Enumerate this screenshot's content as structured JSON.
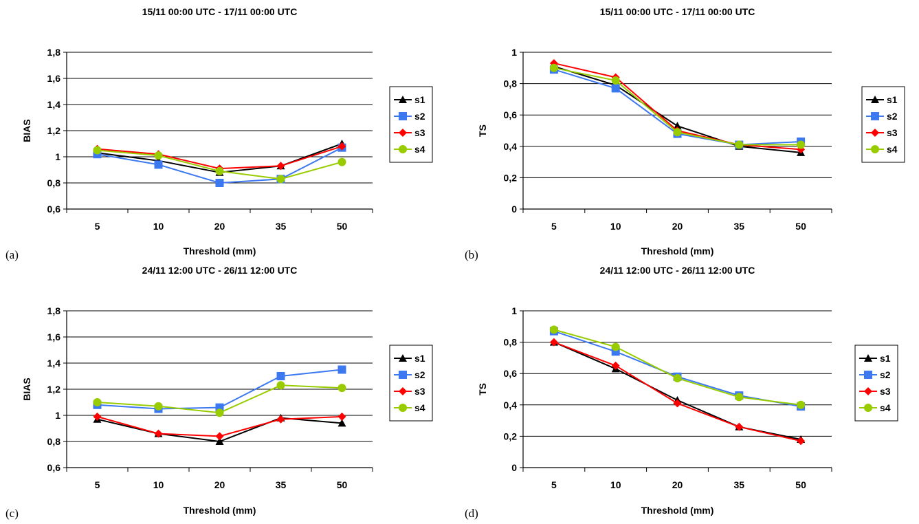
{
  "figures": [
    {
      "panel_label": "(a)"
    },
    {
      "panel_label": "(b)"
    },
    {
      "panel_label": "(c)"
    },
    {
      "panel_label": "(d)"
    }
  ],
  "series_style": [
    {
      "name": "s1",
      "color": "#000000",
      "marker": "triangle"
    },
    {
      "name": "s2",
      "color": "#3c78f0",
      "marker": "square"
    },
    {
      "name": "s3",
      "color": "#ff0000",
      "marker": "diamond"
    },
    {
      "name": "s4",
      "color": "#99cc00",
      "marker": "circle"
    }
  ],
  "chart_data": [
    {
      "type": "line",
      "title": "15/11 00:00 UTC - 17/11 00:00 UTC",
      "xlabel": "Threshold (mm)",
      "ylabel": "BIAS",
      "categories": [
        "5",
        "10",
        "20",
        "35",
        "50"
      ],
      "ylim": [
        0.6,
        1.8
      ],
      "yticks": [
        "0,6",
        "0,8",
        "1",
        "1,2",
        "1,4",
        "1,6",
        "1,8"
      ],
      "ytick_values": [
        0.6,
        0.8,
        1.0,
        1.2,
        1.4,
        1.6,
        1.8
      ],
      "grid": true,
      "legend_position": "right",
      "series": [
        {
          "name": "s1",
          "values": [
            1.03,
            0.97,
            0.88,
            0.93,
            1.1
          ]
        },
        {
          "name": "s2",
          "values": [
            1.02,
            0.94,
            0.8,
            0.83,
            1.07
          ]
        },
        {
          "name": "s3",
          "values": [
            1.06,
            1.02,
            0.91,
            0.93,
            1.08
          ]
        },
        {
          "name": "s4",
          "values": [
            1.05,
            1.01,
            0.89,
            0.83,
            0.96
          ]
        }
      ]
    },
    {
      "type": "line",
      "title": "15/11 00:00 UTC - 17/11 00:00 UTC",
      "xlabel": "Threshold (mm)",
      "ylabel": "TS",
      "categories": [
        "5",
        "10",
        "20",
        "35",
        "50"
      ],
      "ylim": [
        0,
        1
      ],
      "yticks": [
        "0",
        "0,2",
        "0,4",
        "0,6",
        "0,8",
        "1"
      ],
      "ytick_values": [
        0,
        0.2,
        0.4,
        0.6,
        0.8,
        1.0
      ],
      "grid": true,
      "legend_position": "right",
      "series": [
        {
          "name": "s1",
          "values": [
            0.91,
            0.79,
            0.53,
            0.4,
            0.36
          ]
        },
        {
          "name": "s2",
          "values": [
            0.89,
            0.77,
            0.48,
            0.41,
            0.43
          ]
        },
        {
          "name": "s3",
          "values": [
            0.93,
            0.84,
            0.5,
            0.41,
            0.38
          ]
        },
        {
          "name": "s4",
          "values": [
            0.9,
            0.82,
            0.49,
            0.41,
            0.41
          ]
        }
      ]
    },
    {
      "type": "line",
      "title": "24/11 12:00 UTC - 26/11 12:00 UTC",
      "xlabel": "Threshold (mm)",
      "ylabel": "BIAS",
      "categories": [
        "5",
        "10",
        "20",
        "35",
        "50"
      ],
      "ylim": [
        0.6,
        1.8
      ],
      "yticks": [
        "0,6",
        "0,8",
        "1",
        "1,2",
        "1,4",
        "1,6",
        "1,8"
      ],
      "ytick_values": [
        0.6,
        0.8,
        1.0,
        1.2,
        1.4,
        1.6,
        1.8
      ],
      "grid": true,
      "legend_position": "right",
      "series": [
        {
          "name": "s1",
          "values": [
            0.97,
            0.86,
            0.8,
            0.98,
            0.94
          ]
        },
        {
          "name": "s2",
          "values": [
            1.08,
            1.05,
            1.06,
            1.3,
            1.35
          ]
        },
        {
          "name": "s3",
          "values": [
            0.99,
            0.86,
            0.84,
            0.97,
            0.99
          ]
        },
        {
          "name": "s4",
          "values": [
            1.1,
            1.07,
            1.02,
            1.23,
            1.21
          ]
        }
      ]
    },
    {
      "type": "line",
      "title": "24/11 12:00 UTC - 26/11 12:00 UTC",
      "xlabel": "Threshold (mm)",
      "ylabel": "TS",
      "categories": [
        "5",
        "10",
        "20",
        "35",
        "50"
      ],
      "ylim": [
        0,
        1
      ],
      "yticks": [
        "0",
        "0,2",
        "0,4",
        "0,6",
        "0,8",
        "1"
      ],
      "ytick_values": [
        0,
        0.2,
        0.4,
        0.6,
        0.8,
        1.0
      ],
      "grid": true,
      "legend_position": "right",
      "series": [
        {
          "name": "s1",
          "values": [
            0.8,
            0.63,
            0.43,
            0.26,
            0.18
          ]
        },
        {
          "name": "s2",
          "values": [
            0.87,
            0.74,
            0.58,
            0.46,
            0.39
          ]
        },
        {
          "name": "s3",
          "values": [
            0.8,
            0.65,
            0.41,
            0.26,
            0.17
          ]
        },
        {
          "name": "s4",
          "values": [
            0.88,
            0.77,
            0.57,
            0.45,
            0.4
          ]
        }
      ]
    }
  ]
}
